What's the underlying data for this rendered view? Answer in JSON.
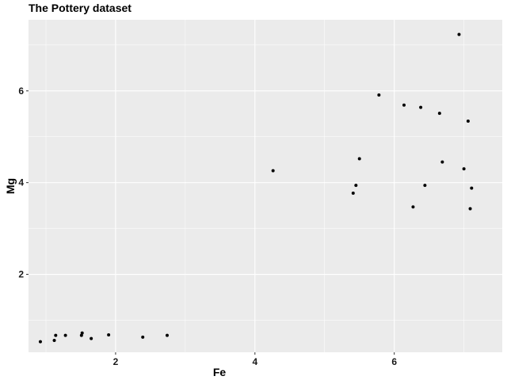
{
  "chart_data": {
    "type": "scatter",
    "title": "The Pottery dataset",
    "xlabel": "Fe",
    "ylabel": "Mg",
    "xlim": [
      0.75,
      7.55
    ],
    "ylim": [
      0.3,
      7.55
    ],
    "xticks": [
      2,
      4,
      6
    ],
    "yticks": [
      2,
      4,
      6
    ],
    "grid": true,
    "legend": "none",
    "points": [
      {
        "x": 0.92,
        "y": 0.53
      },
      {
        "x": 1.12,
        "y": 0.56
      },
      {
        "x": 1.14,
        "y": 0.67
      },
      {
        "x": 1.28,
        "y": 0.67
      },
      {
        "x": 1.51,
        "y": 0.67
      },
      {
        "x": 1.52,
        "y": 0.72
      },
      {
        "x": 1.65,
        "y": 0.6
      },
      {
        "x": 1.9,
        "y": 0.68
      },
      {
        "x": 2.39,
        "y": 0.63
      },
      {
        "x": 2.74,
        "y": 0.67
      },
      {
        "x": 4.26,
        "y": 4.26
      },
      {
        "x": 5.41,
        "y": 3.77
      },
      {
        "x": 5.45,
        "y": 3.94
      },
      {
        "x": 5.5,
        "y": 4.52
      },
      {
        "x": 5.78,
        "y": 5.91
      },
      {
        "x": 6.14,
        "y": 5.69
      },
      {
        "x": 6.27,
        "y": 3.47
      },
      {
        "x": 6.38,
        "y": 5.64
      },
      {
        "x": 6.44,
        "y": 3.94
      },
      {
        "x": 6.65,
        "y": 5.51
      },
      {
        "x": 6.69,
        "y": 4.45
      },
      {
        "x": 6.93,
        "y": 7.23
      },
      {
        "x": 7.0,
        "y": 4.3
      },
      {
        "x": 7.06,
        "y": 5.34
      },
      {
        "x": 7.09,
        "y": 3.43
      },
      {
        "x": 7.11,
        "y": 3.88
      }
    ]
  },
  "colors": {
    "panel_background": "#ebebeb",
    "grid_major": "#ffffff",
    "point": "#000000"
  }
}
